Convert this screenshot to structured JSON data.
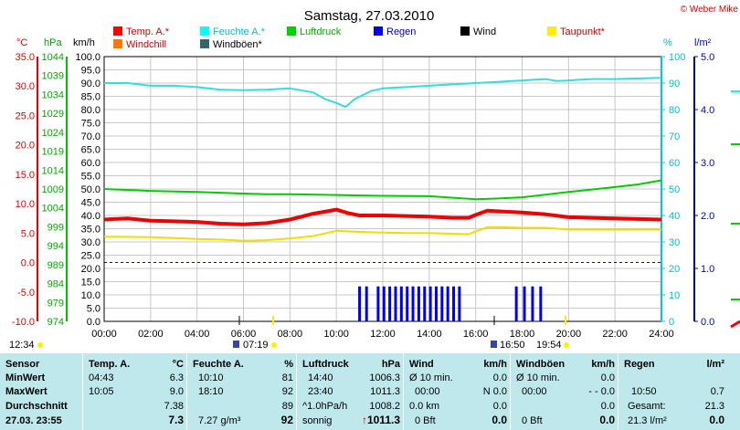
{
  "chart_data": {
    "type": "line",
    "title": "Samstag, 27.03.2010",
    "watermark": "© Weber Mike",
    "x": [
      "00:00",
      "02:00",
      "04:00",
      "06:00",
      "08:00",
      "10:00",
      "12:00",
      "14:00",
      "16:00",
      "18:00",
      "20:00",
      "22:00",
      "24:00"
    ],
    "xlim": [
      0,
      24
    ],
    "grid": true,
    "axes": {
      "temp_c": {
        "unit": "°C",
        "range": [
          -10,
          35
        ],
        "ticks": [
          "35.0",
          "30.0",
          "25.0",
          "20.0",
          "15.0",
          "10.0",
          "5.0",
          "0.0",
          "-5.0",
          "-10.0"
        ],
        "color": "#e00000"
      },
      "pressure_hpa": {
        "unit": "hPa",
        "range": [
          974,
          1044
        ],
        "ticks": [
          "1044",
          "1039",
          "1034",
          "1029",
          "1024",
          "1019",
          "1014",
          "1009",
          "1004",
          "999",
          "994",
          "989",
          "984",
          "979",
          "974"
        ],
        "color": "#00c000"
      },
      "wind_kmh": {
        "unit": "km/h",
        "range": [
          0,
          100
        ],
        "ticks": [
          "100.0",
          "95.0",
          "90.0",
          "85.0",
          "80.0",
          "75.0",
          "70.0",
          "65.0",
          "60.0",
          "55.0",
          "50.0",
          "45.0",
          "40.0",
          "35.0",
          "30.0",
          "25.0",
          "20.0",
          "15.0",
          "10.0",
          "5.0",
          "0.0"
        ]
      },
      "humidity_pct": {
        "unit": "%",
        "range": [
          0,
          100
        ],
        "ticks": [
          "100",
          "90",
          "80",
          "70",
          "60",
          "50",
          "40",
          "30",
          "20",
          "10",
          "0"
        ],
        "color": "#00c8d8"
      },
      "rain_lm2": {
        "unit": "l/m²",
        "range": [
          0,
          5
        ],
        "ticks": [
          "5.0",
          "4.0",
          "3.0",
          "2.0",
          "1.0",
          "0.0"
        ],
        "color": "#0000c0"
      }
    },
    "legend": [
      {
        "name": "Temp. A.*",
        "color": "#ff0000"
      },
      {
        "name": "Feuchte A.*",
        "color": "#00ffff"
      },
      {
        "name": "Luftdruck",
        "color": "#00d000"
      },
      {
        "name": "Regen",
        "color": "#0000ff"
      },
      {
        "name": "Wind",
        "color": "#000000"
      },
      {
        "name": "Taupunkt*",
        "color": "#ffee00"
      },
      {
        "name": "Windchill",
        "color": "#ff7700"
      },
      {
        "name": "Windböen*",
        "color": "#336666"
      }
    ],
    "series": [
      {
        "name": "Temp. A.*",
        "axis": "temp_c",
        "color": "#ee0000",
        "width": 4,
        "points": [
          [
            0,
            7.3
          ],
          [
            1,
            7.5
          ],
          [
            2,
            7.1
          ],
          [
            3,
            7.0
          ],
          [
            4,
            6.9
          ],
          [
            5,
            6.6
          ],
          [
            6,
            6.5
          ],
          [
            7,
            6.7
          ],
          [
            8,
            7.3
          ],
          [
            9,
            8.3
          ],
          [
            10,
            9.0
          ],
          [
            10.5,
            8.4
          ],
          [
            11,
            8.0
          ],
          [
            12,
            8.0
          ],
          [
            13,
            7.9
          ],
          [
            14,
            7.8
          ],
          [
            15,
            7.6
          ],
          [
            15.7,
            7.6
          ],
          [
            16,
            8.1
          ],
          [
            16.5,
            8.8
          ],
          [
            17,
            8.7
          ],
          [
            18,
            8.5
          ],
          [
            19,
            8.2
          ],
          [
            20,
            7.7
          ],
          [
            21,
            7.6
          ],
          [
            22,
            7.5
          ],
          [
            23,
            7.4
          ],
          [
            24,
            7.3
          ]
        ]
      },
      {
        "name": "Taupunkt*",
        "axis": "temp_c",
        "color": "#eedd00",
        "width": 2,
        "points": [
          [
            0,
            4.4
          ],
          [
            2,
            4.3
          ],
          [
            4,
            4.0
          ],
          [
            5,
            3.9
          ],
          [
            6,
            3.7
          ],
          [
            7,
            3.8
          ],
          [
            8,
            4.1
          ],
          [
            9,
            4.5
          ],
          [
            10,
            5.4
          ],
          [
            11,
            5.2
          ],
          [
            12,
            5.1
          ],
          [
            13,
            5.0
          ],
          [
            14,
            5.0
          ],
          [
            15,
            4.9
          ],
          [
            15.7,
            4.8
          ],
          [
            16,
            5.3
          ],
          [
            16.5,
            6.0
          ],
          [
            17,
            6.0
          ],
          [
            18,
            5.9
          ],
          [
            19,
            5.9
          ],
          [
            20,
            5.6
          ],
          [
            22,
            5.6
          ],
          [
            24,
            5.6
          ]
        ]
      },
      {
        "name": "Feuchte A.*",
        "axis": "humidity_pct",
        "color": "#33dddd",
        "width": 2,
        "points": [
          [
            0,
            90
          ],
          [
            1,
            90
          ],
          [
            2,
            89
          ],
          [
            3,
            89
          ],
          [
            4,
            88.5
          ],
          [
            5,
            87.5
          ],
          [
            6,
            87.3
          ],
          [
            7,
            87.5
          ],
          [
            8,
            88
          ],
          [
            9,
            86.5
          ],
          [
            9.5,
            84
          ],
          [
            10,
            82.5
          ],
          [
            10.4,
            81
          ],
          [
            10.8,
            84
          ],
          [
            11.5,
            87
          ],
          [
            12,
            88
          ],
          [
            13,
            88.5
          ],
          [
            14,
            89
          ],
          [
            15,
            89.5
          ],
          [
            16,
            90
          ],
          [
            17,
            90.5
          ],
          [
            18,
            91
          ],
          [
            19,
            91.5
          ],
          [
            19.5,
            90.8
          ],
          [
            20,
            91
          ],
          [
            21,
            91.5
          ],
          [
            22,
            91.5
          ],
          [
            24,
            92
          ]
        ]
      },
      {
        "name": "Luftdruck",
        "axis": "pressure_hpa",
        "color": "#00cc00",
        "width": 2,
        "points": [
          [
            0,
            1009.0
          ],
          [
            2,
            1008.5
          ],
          [
            4,
            1008.2
          ],
          [
            6,
            1007.8
          ],
          [
            7,
            1007.6
          ],
          [
            8,
            1007.6
          ],
          [
            10,
            1007.4
          ],
          [
            12,
            1007.2
          ],
          [
            14,
            1007.1
          ],
          [
            16,
            1006.3
          ],
          [
            17,
            1006.5
          ],
          [
            18,
            1006.8
          ],
          [
            19,
            1007.5
          ],
          [
            20,
            1008.2
          ],
          [
            22,
            1009.5
          ],
          [
            23,
            1010.2
          ],
          [
            24,
            1011.3
          ]
        ]
      }
    ],
    "rain_bars_hours": [
      11.0,
      11.3,
      11.8,
      12.05,
      12.3,
      12.55,
      12.8,
      13.05,
      13.3,
      13.55,
      13.8,
      14.05,
      14.3,
      14.55,
      14.8,
      15.05,
      15.3,
      17.75,
      18.1,
      18.45,
      18.8
    ],
    "rain_bar_value_kmh_axis": 13.2,
    "dashed_zero_line": 0.0
  },
  "sun": {
    "sunrise_left": "12:34",
    "sunrise": "07:19",
    "sunset_left": "16:50",
    "sunset": "19:54"
  },
  "table": {
    "row_labels": [
      "Sensor",
      "MinWert",
      "MaxWert",
      "Durchschnitt",
      "27.03. 23:55"
    ],
    "temp": {
      "header": "Temp. A.",
      "unit": "°C",
      "min_time": "04:43",
      "min": "6.3",
      "max_time": "10:05",
      "max": "9.0",
      "avg": "7.38",
      "current": "7.3"
    },
    "humidity": {
      "header": "Feuchte A.",
      "unit": "%",
      "min_time": "10:10",
      "min": "81",
      "max_time": "18:10",
      "max": "92",
      "avg": "89",
      "current_abs": "7.27 g/m³",
      "current": "92"
    },
    "pressure": {
      "header": "Luftdruck",
      "unit": "hPa",
      "min_time": "14:40",
      "min": "1006.3",
      "max_time": "23:40",
      "max": "1011.3",
      "trend_label": "^1.0hPa/h",
      "avg": "1008.2",
      "weather": "sonnig",
      "current_arrow": "↑",
      "current": "1011.3"
    },
    "wind": {
      "header": "Wind",
      "unit": "km/h",
      "r1": "Ø 10 min.",
      "r1v": "0.0",
      "r2": "00:00",
      "r2v": "N 0.0",
      "r3": "0.0 km",
      "r3v": "0.0",
      "r4": "0 Bft",
      "current": "0.0"
    },
    "gust": {
      "header": "Windböen",
      "unit": "km/h",
      "r1": "Ø 10 min.",
      "r1v": "0.0",
      "r2": "00:00",
      "r2v": "- - 0.0",
      "r3v": "0.0",
      "r4": "0 Bft",
      "current": "0.0"
    },
    "rain": {
      "header": "Regen",
      "unit": "l/m²",
      "r2": "10:50",
      "r2v": "0.7",
      "r3": "Gesamt:",
      "r3v": "21.3",
      "current": "21.3 l/m²",
      "current_v": "0.0"
    }
  }
}
